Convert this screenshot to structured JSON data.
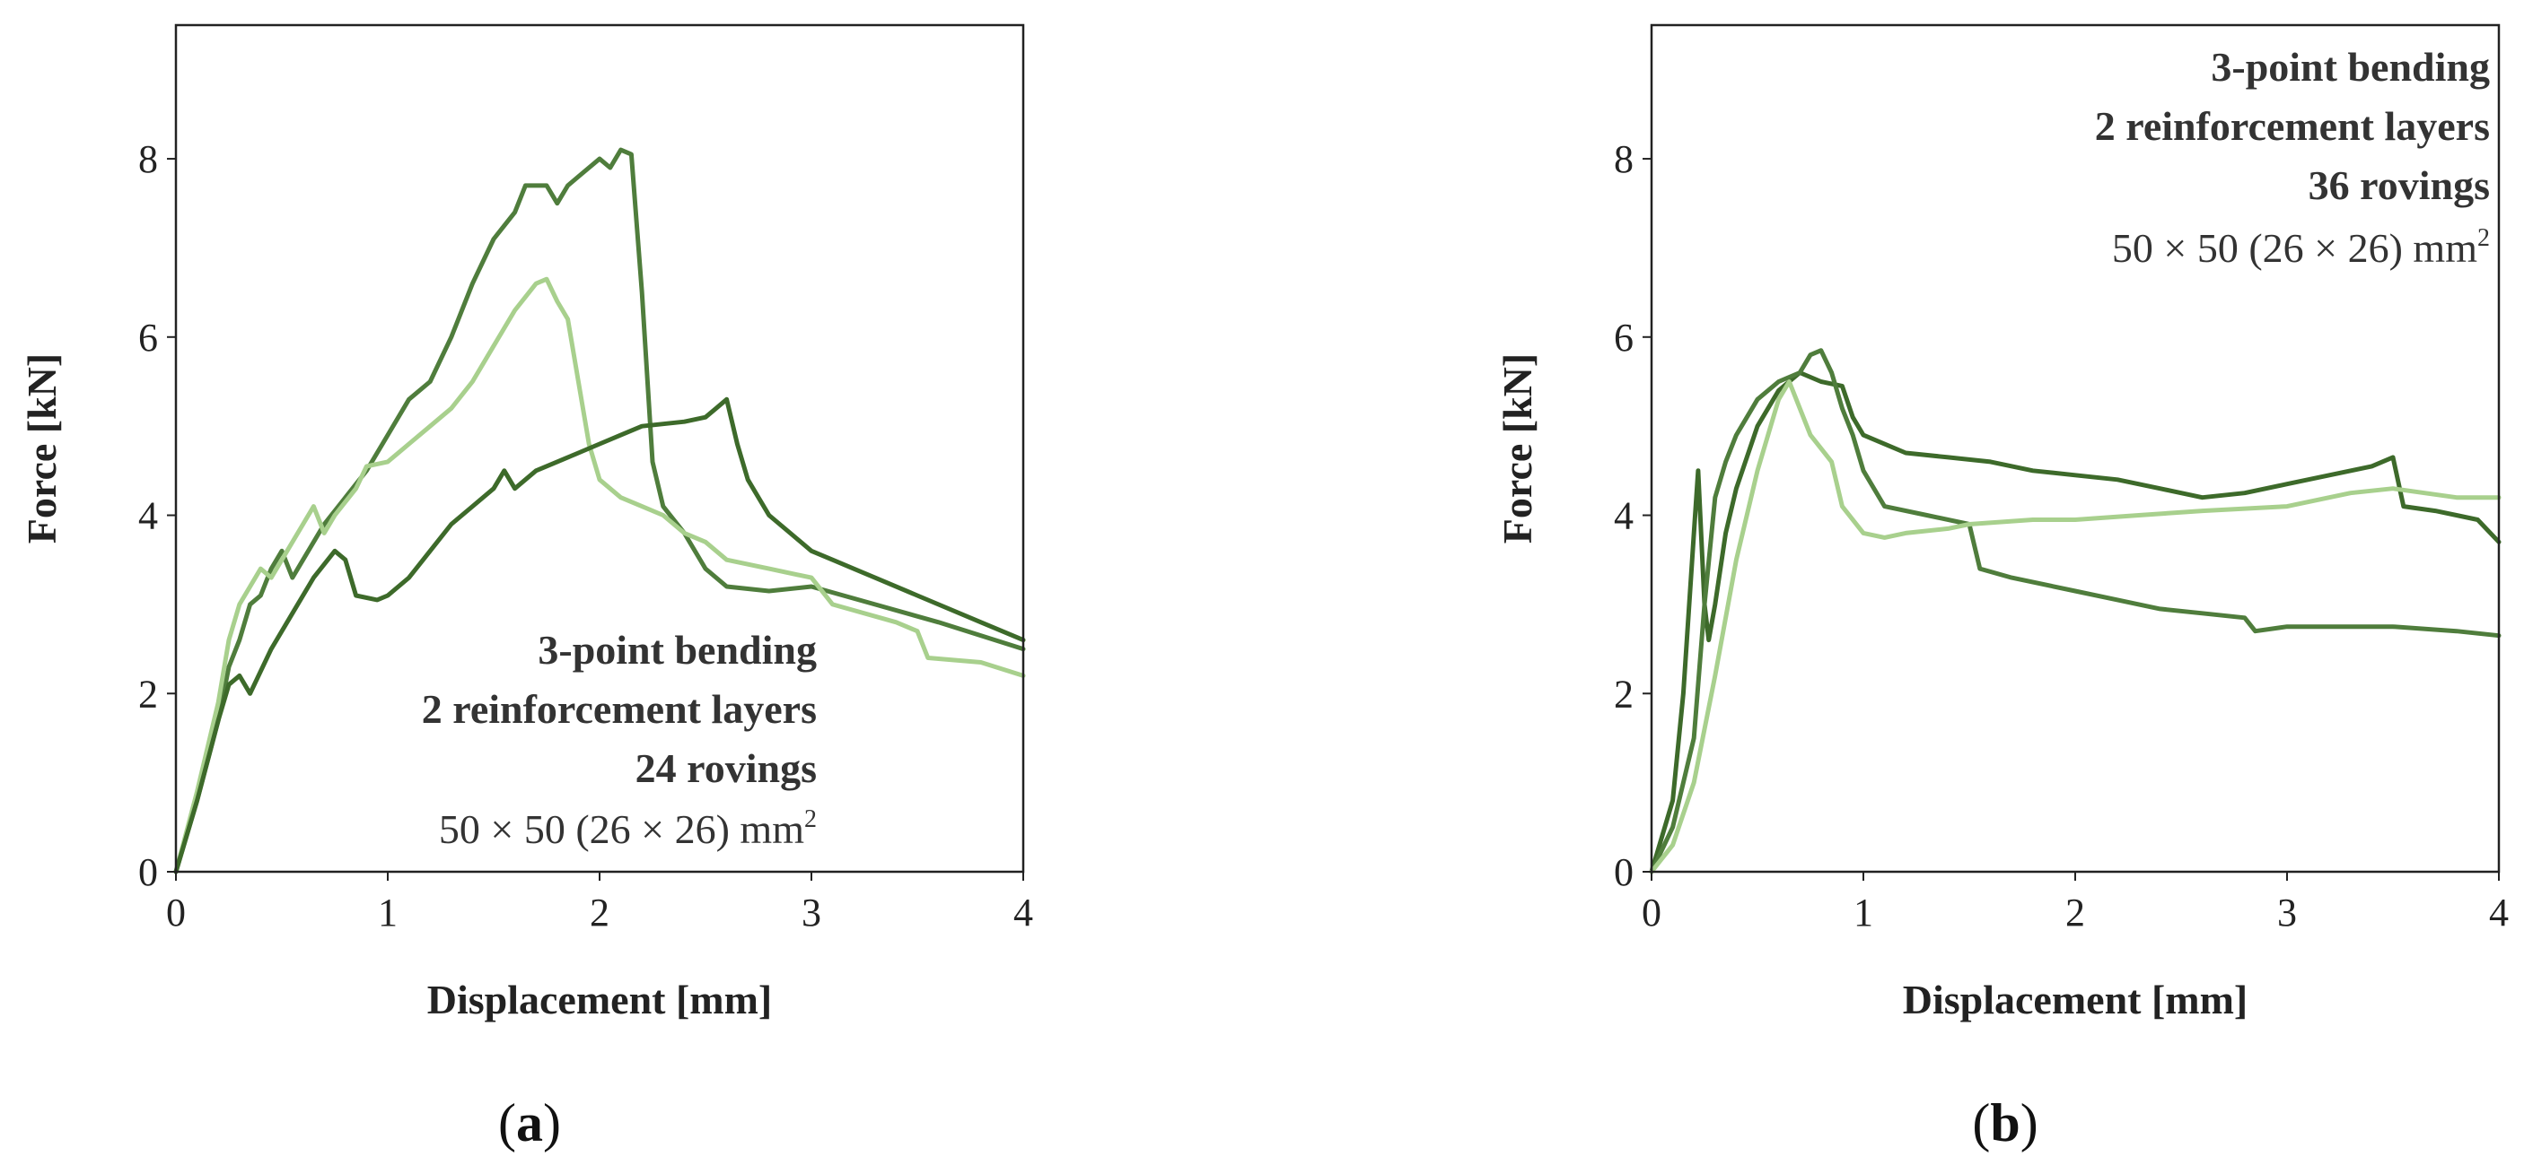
{
  "chart_data": [
    {
      "type": "line",
      "caption": "a",
      "xlabel": "Displacement [mm]",
      "ylabel": "Force [kN]",
      "xlim": [
        0,
        4
      ],
      "ylim": [
        0,
        9.5
      ],
      "xticks": [
        0,
        1,
        2,
        3,
        4
      ],
      "yticks": [
        0,
        2,
        4,
        6,
        8
      ],
      "annotation": {
        "lines_bold": [
          "3-point bending",
          "2 reinforcement layers",
          "24 rovings"
        ],
        "line_plain": "50 × 50 (26 × 26) mm",
        "superscript": "2",
        "placement": "bottom-right"
      },
      "series": [
        {
          "color": "#4f7d3c",
          "points": [
            [
              0,
              0
            ],
            [
              0.1,
              0.8
            ],
            [
              0.2,
              1.7
            ],
            [
              0.25,
              2.3
            ],
            [
              0.3,
              2.6
            ],
            [
              0.35,
              3.0
            ],
            [
              0.4,
              3.1
            ],
            [
              0.45,
              3.4
            ],
            [
              0.5,
              3.6
            ],
            [
              0.55,
              3.3
            ],
            [
              0.6,
              3.5
            ],
            [
              0.7,
              3.9
            ],
            [
              0.8,
              4.2
            ],
            [
              0.9,
              4.5
            ],
            [
              1.0,
              4.9
            ],
            [
              1.1,
              5.3
            ],
            [
              1.2,
              5.5
            ],
            [
              1.3,
              6.0
            ],
            [
              1.4,
              6.6
            ],
            [
              1.5,
              7.1
            ],
            [
              1.6,
              7.4
            ],
            [
              1.65,
              7.7
            ],
            [
              1.75,
              7.7
            ],
            [
              1.8,
              7.5
            ],
            [
              1.85,
              7.7
            ],
            [
              1.9,
              7.8
            ],
            [
              2.0,
              8.0
            ],
            [
              2.05,
              7.9
            ],
            [
              2.1,
              8.1
            ],
            [
              2.15,
              8.05
            ],
            [
              2.2,
              6.5
            ],
            [
              2.25,
              4.6
            ],
            [
              2.3,
              4.1
            ],
            [
              2.4,
              3.8
            ],
            [
              2.5,
              3.4
            ],
            [
              2.6,
              3.2
            ],
            [
              2.8,
              3.15
            ],
            [
              3.0,
              3.2
            ],
            [
              3.3,
              3.0
            ],
            [
              3.6,
              2.8
            ],
            [
              4.0,
              2.5
            ]
          ]
        },
        {
          "color": "#a8d08d",
          "points": [
            [
              0,
              0
            ],
            [
              0.1,
              0.9
            ],
            [
              0.2,
              1.9
            ],
            [
              0.25,
              2.6
            ],
            [
              0.3,
              3.0
            ],
            [
              0.35,
              3.2
            ],
            [
              0.4,
              3.4
            ],
            [
              0.45,
              3.3
            ],
            [
              0.5,
              3.5
            ],
            [
              0.6,
              3.9
            ],
            [
              0.65,
              4.1
            ],
            [
              0.7,
              3.8
            ],
            [
              0.75,
              4.0
            ],
            [
              0.85,
              4.3
            ],
            [
              0.9,
              4.55
            ],
            [
              1.0,
              4.6
            ],
            [
              1.1,
              4.8
            ],
            [
              1.2,
              5.0
            ],
            [
              1.3,
              5.2
            ],
            [
              1.4,
              5.5
            ],
            [
              1.5,
              5.9
            ],
            [
              1.6,
              6.3
            ],
            [
              1.7,
              6.6
            ],
            [
              1.75,
              6.65
            ],
            [
              1.8,
              6.4
            ],
            [
              1.85,
              6.2
            ],
            [
              1.9,
              5.5
            ],
            [
              1.95,
              4.8
            ],
            [
              2.0,
              4.4
            ],
            [
              2.1,
              4.2
            ],
            [
              2.2,
              4.1
            ],
            [
              2.3,
              4.0
            ],
            [
              2.4,
              3.8
            ],
            [
              2.5,
              3.7
            ],
            [
              2.6,
              3.5
            ],
            [
              2.8,
              3.4
            ],
            [
              3.0,
              3.3
            ],
            [
              3.1,
              3.0
            ],
            [
              3.4,
              2.8
            ],
            [
              3.5,
              2.7
            ],
            [
              3.55,
              2.4
            ],
            [
              3.8,
              2.35
            ],
            [
              4.0,
              2.2
            ]
          ]
        },
        {
          "color": "#3d6a2a",
          "points": [
            [
              0,
              0
            ],
            [
              0.1,
              0.8
            ],
            [
              0.2,
              1.7
            ],
            [
              0.25,
              2.1
            ],
            [
              0.3,
              2.2
            ],
            [
              0.35,
              2.0
            ],
            [
              0.45,
              2.5
            ],
            [
              0.55,
              2.9
            ],
            [
              0.65,
              3.3
            ],
            [
              0.75,
              3.6
            ],
            [
              0.8,
              3.5
            ],
            [
              0.85,
              3.1
            ],
            [
              0.95,
              3.05
            ],
            [
              1.0,
              3.1
            ],
            [
              1.1,
              3.3
            ],
            [
              1.2,
              3.6
            ],
            [
              1.3,
              3.9
            ],
            [
              1.4,
              4.1
            ],
            [
              1.5,
              4.3
            ],
            [
              1.55,
              4.5
            ],
            [
              1.6,
              4.3
            ],
            [
              1.7,
              4.5
            ],
            [
              1.8,
              4.6
            ],
            [
              1.9,
              4.7
            ],
            [
              2.0,
              4.8
            ],
            [
              2.1,
              4.9
            ],
            [
              2.2,
              5.0
            ],
            [
              2.4,
              5.05
            ],
            [
              2.5,
              5.1
            ],
            [
              2.55,
              5.2
            ],
            [
              2.6,
              5.3
            ],
            [
              2.65,
              4.8
            ],
            [
              2.7,
              4.4
            ],
            [
              2.8,
              4.0
            ],
            [
              2.9,
              3.8
            ],
            [
              3.0,
              3.6
            ],
            [
              3.1,
              3.5
            ],
            [
              3.3,
              3.3
            ],
            [
              3.5,
              3.1
            ],
            [
              3.8,
              2.8
            ],
            [
              4.0,
              2.6
            ]
          ]
        }
      ]
    },
    {
      "type": "line",
      "caption": "b",
      "xlabel": "Displacement [mm]",
      "ylabel": "Force [kN]",
      "xlim": [
        0,
        4
      ],
      "ylim": [
        0,
        9.5
      ],
      "xticks": [
        0,
        1,
        2,
        3,
        4
      ],
      "yticks": [
        0,
        2,
        4,
        6,
        8
      ],
      "annotation": {
        "lines_bold": [
          "3-point bending",
          "2 reinforcement layers",
          "36 rovings"
        ],
        "line_plain": "50 × 50 (26 × 26) mm",
        "superscript": "2",
        "placement": "top-right"
      },
      "series": [
        {
          "color": "#3d6a2a",
          "points": [
            [
              0,
              0
            ],
            [
              0.1,
              0.8
            ],
            [
              0.15,
              2.0
            ],
            [
              0.2,
              3.8
            ],
            [
              0.22,
              4.5
            ],
            [
              0.25,
              3.0
            ],
            [
              0.27,
              2.6
            ],
            [
              0.3,
              3.0
            ],
            [
              0.35,
              3.8
            ],
            [
              0.4,
              4.3
            ],
            [
              0.5,
              5.0
            ],
            [
              0.6,
              5.4
            ],
            [
              0.7,
              5.6
            ],
            [
              0.8,
              5.5
            ],
            [
              0.9,
              5.45
            ],
            [
              0.95,
              5.1
            ],
            [
              1.0,
              4.9
            ],
            [
              1.2,
              4.7
            ],
            [
              1.4,
              4.65
            ],
            [
              1.6,
              4.6
            ],
            [
              1.8,
              4.5
            ],
            [
              2.0,
              4.45
            ],
            [
              2.2,
              4.4
            ],
            [
              2.4,
              4.3
            ],
            [
              2.6,
              4.2
            ],
            [
              2.8,
              4.25
            ],
            [
              3.0,
              4.35
            ],
            [
              3.2,
              4.45
            ],
            [
              3.4,
              4.55
            ],
            [
              3.5,
              4.65
            ],
            [
              3.55,
              4.1
            ],
            [
              3.7,
              4.05
            ],
            [
              3.8,
              4.0
            ],
            [
              3.9,
              3.95
            ],
            [
              4.0,
              3.7
            ]
          ]
        },
        {
          "color": "#4f7d3c",
          "points": [
            [
              0,
              0
            ],
            [
              0.1,
              0.5
            ],
            [
              0.2,
              1.5
            ],
            [
              0.25,
              3.0
            ],
            [
              0.3,
              4.2
            ],
            [
              0.35,
              4.6
            ],
            [
              0.4,
              4.9
            ],
            [
              0.5,
              5.3
            ],
            [
              0.6,
              5.5
            ],
            [
              0.7,
              5.6
            ],
            [
              0.75,
              5.8
            ],
            [
              0.8,
              5.85
            ],
            [
              0.85,
              5.6
            ],
            [
              0.9,
              5.2
            ],
            [
              0.95,
              4.9
            ],
            [
              1.0,
              4.5
            ],
            [
              1.1,
              4.1
            ],
            [
              1.3,
              4.0
            ],
            [
              1.5,
              3.9
            ],
            [
              1.55,
              3.4
            ],
            [
              1.7,
              3.3
            ],
            [
              2.0,
              3.15
            ],
            [
              2.2,
              3.05
            ],
            [
              2.4,
              2.95
            ],
            [
              2.6,
              2.9
            ],
            [
              2.8,
              2.85
            ],
            [
              2.85,
              2.7
            ],
            [
              3.0,
              2.75
            ],
            [
              3.2,
              2.75
            ],
            [
              3.5,
              2.75
            ],
            [
              3.8,
              2.7
            ],
            [
              4.0,
              2.65
            ]
          ]
        },
        {
          "color": "#a8d08d",
          "points": [
            [
              0,
              0
            ],
            [
              0.1,
              0.3
            ],
            [
              0.2,
              1.0
            ],
            [
              0.3,
              2.2
            ],
            [
              0.4,
              3.5
            ],
            [
              0.5,
              4.5
            ],
            [
              0.6,
              5.3
            ],
            [
              0.65,
              5.5
            ],
            [
              0.7,
              5.2
            ],
            [
              0.75,
              4.9
            ],
            [
              0.85,
              4.6
            ],
            [
              0.9,
              4.1
            ],
            [
              1.0,
              3.8
            ],
            [
              1.1,
              3.75
            ],
            [
              1.2,
              3.8
            ],
            [
              1.4,
              3.85
            ],
            [
              1.5,
              3.9
            ],
            [
              1.8,
              3.95
            ],
            [
              2.0,
              3.95
            ],
            [
              2.3,
              4.0
            ],
            [
              2.6,
              4.05
            ],
            [
              3.0,
              4.1
            ],
            [
              3.3,
              4.25
            ],
            [
              3.5,
              4.3
            ],
            [
              3.8,
              4.2
            ],
            [
              4.0,
              4.2
            ]
          ]
        }
      ]
    }
  ]
}
